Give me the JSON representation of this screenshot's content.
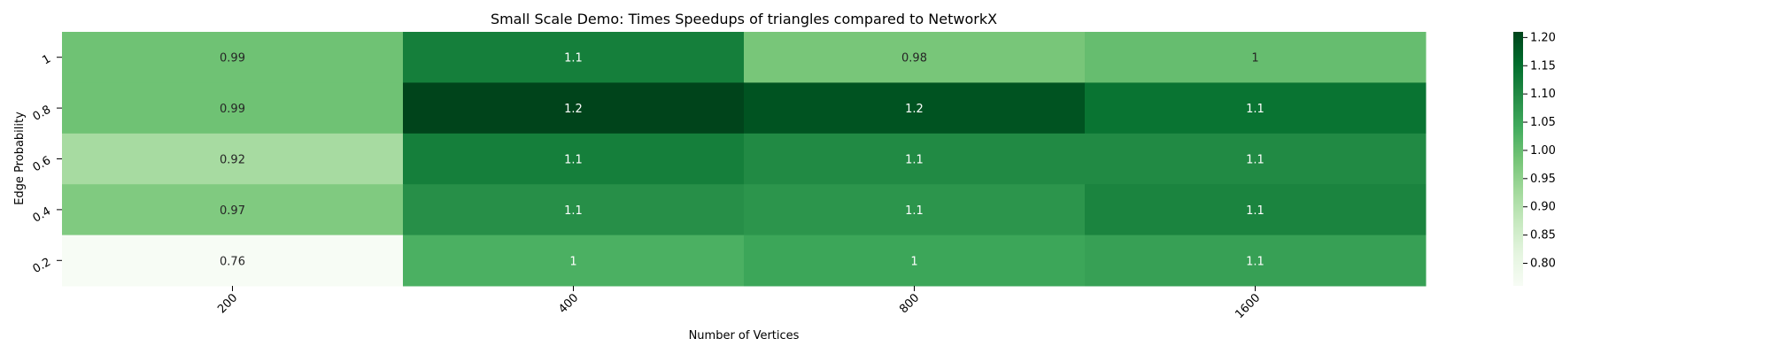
{
  "chart_data": {
    "type": "heatmap",
    "title": "Small Scale Demo: Times Speedups of triangles compared to NetworkX",
    "xlabel": "Number of Vertices",
    "ylabel": "Edge Probability",
    "x_categories": [
      "200",
      "400",
      "800",
      "1600"
    ],
    "y_categories": [
      "1",
      "0.8",
      "0.6",
      "0.4",
      "0.2"
    ],
    "values": [
      [
        0.99,
        1.12,
        0.98,
        1.0
      ],
      [
        0.99,
        1.21,
        1.19,
        1.14
      ],
      [
        0.92,
        1.12,
        1.1,
        1.1
      ],
      [
        0.97,
        1.09,
        1.08,
        1.11
      ],
      [
        0.76,
        1.03,
        1.05,
        1.06
      ]
    ],
    "annotations": [
      [
        "0.99",
        "1.1",
        "0.98",
        "1"
      ],
      [
        "0.99",
        "1.2",
        "1.2",
        "1.1"
      ],
      [
        "0.92",
        "1.1",
        "1.1",
        "1.1"
      ],
      [
        "0.97",
        "1.1",
        "1.1",
        "1.1"
      ],
      [
        "0.76",
        "1",
        "1",
        "1.1"
      ]
    ],
    "colormap": "Greens",
    "color_range": [
      0.76,
      1.21
    ],
    "colorbar_ticks": [
      0.8,
      0.85,
      0.9,
      0.95,
      1.0,
      1.05,
      1.1,
      1.15,
      1.2
    ],
    "colorbar_tick_labels": [
      "0.80",
      "0.85",
      "0.90",
      "0.95",
      "1.00",
      "1.05",
      "1.10",
      "1.15",
      "1.20"
    ],
    "grid": false,
    "legend": "colorbar-right"
  }
}
